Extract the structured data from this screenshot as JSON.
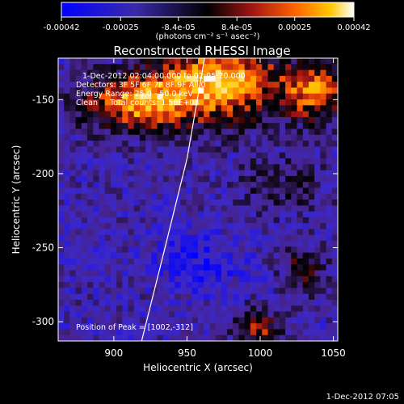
{
  "chart_data": {
    "type": "heatmap",
    "title": "Reconstructed RHESSI Image",
    "xlabel": "Heliocentric X (arcsec)",
    "ylabel": "Heliocentric Y (arcsec)",
    "xlim": [
      862,
      1053
    ],
    "ylim": [
      -313,
      -122
    ],
    "xticks": [
      900,
      950,
      1000,
      1050
    ],
    "yticks": [
      -150,
      -200,
      -250,
      -300
    ],
    "colorbar": {
      "ticks": [
        "-0.00042",
        "-0.00025",
        "-8.4e-05",
        "8.4e-05",
        "0.00025",
        "0.00042"
      ],
      "unit_label": "(photons cm⁻² s⁻¹ asec⁻²)",
      "range": [
        -0.00042,
        0.00042
      ]
    },
    "annotations": [
      "1-Dec-2012 02:04:00.000 to 02:05:20.000",
      "Detectors: 3F 5F 6F 7F 8F 9F All 0",
      "Energy Range: 25.0 - 50.0 keV",
      "Clean     Total counts: 1.56E+03",
      "Position of Peak = [1002,-312]"
    ],
    "peak": [
      1002,
      -312
    ],
    "limb_curve": [
      [
        919,
        -313
      ],
      [
        935,
        -250
      ],
      [
        950,
        -190
      ],
      [
        962,
        -122
      ]
    ],
    "timestamp": "1-Dec-2012 07:05"
  }
}
